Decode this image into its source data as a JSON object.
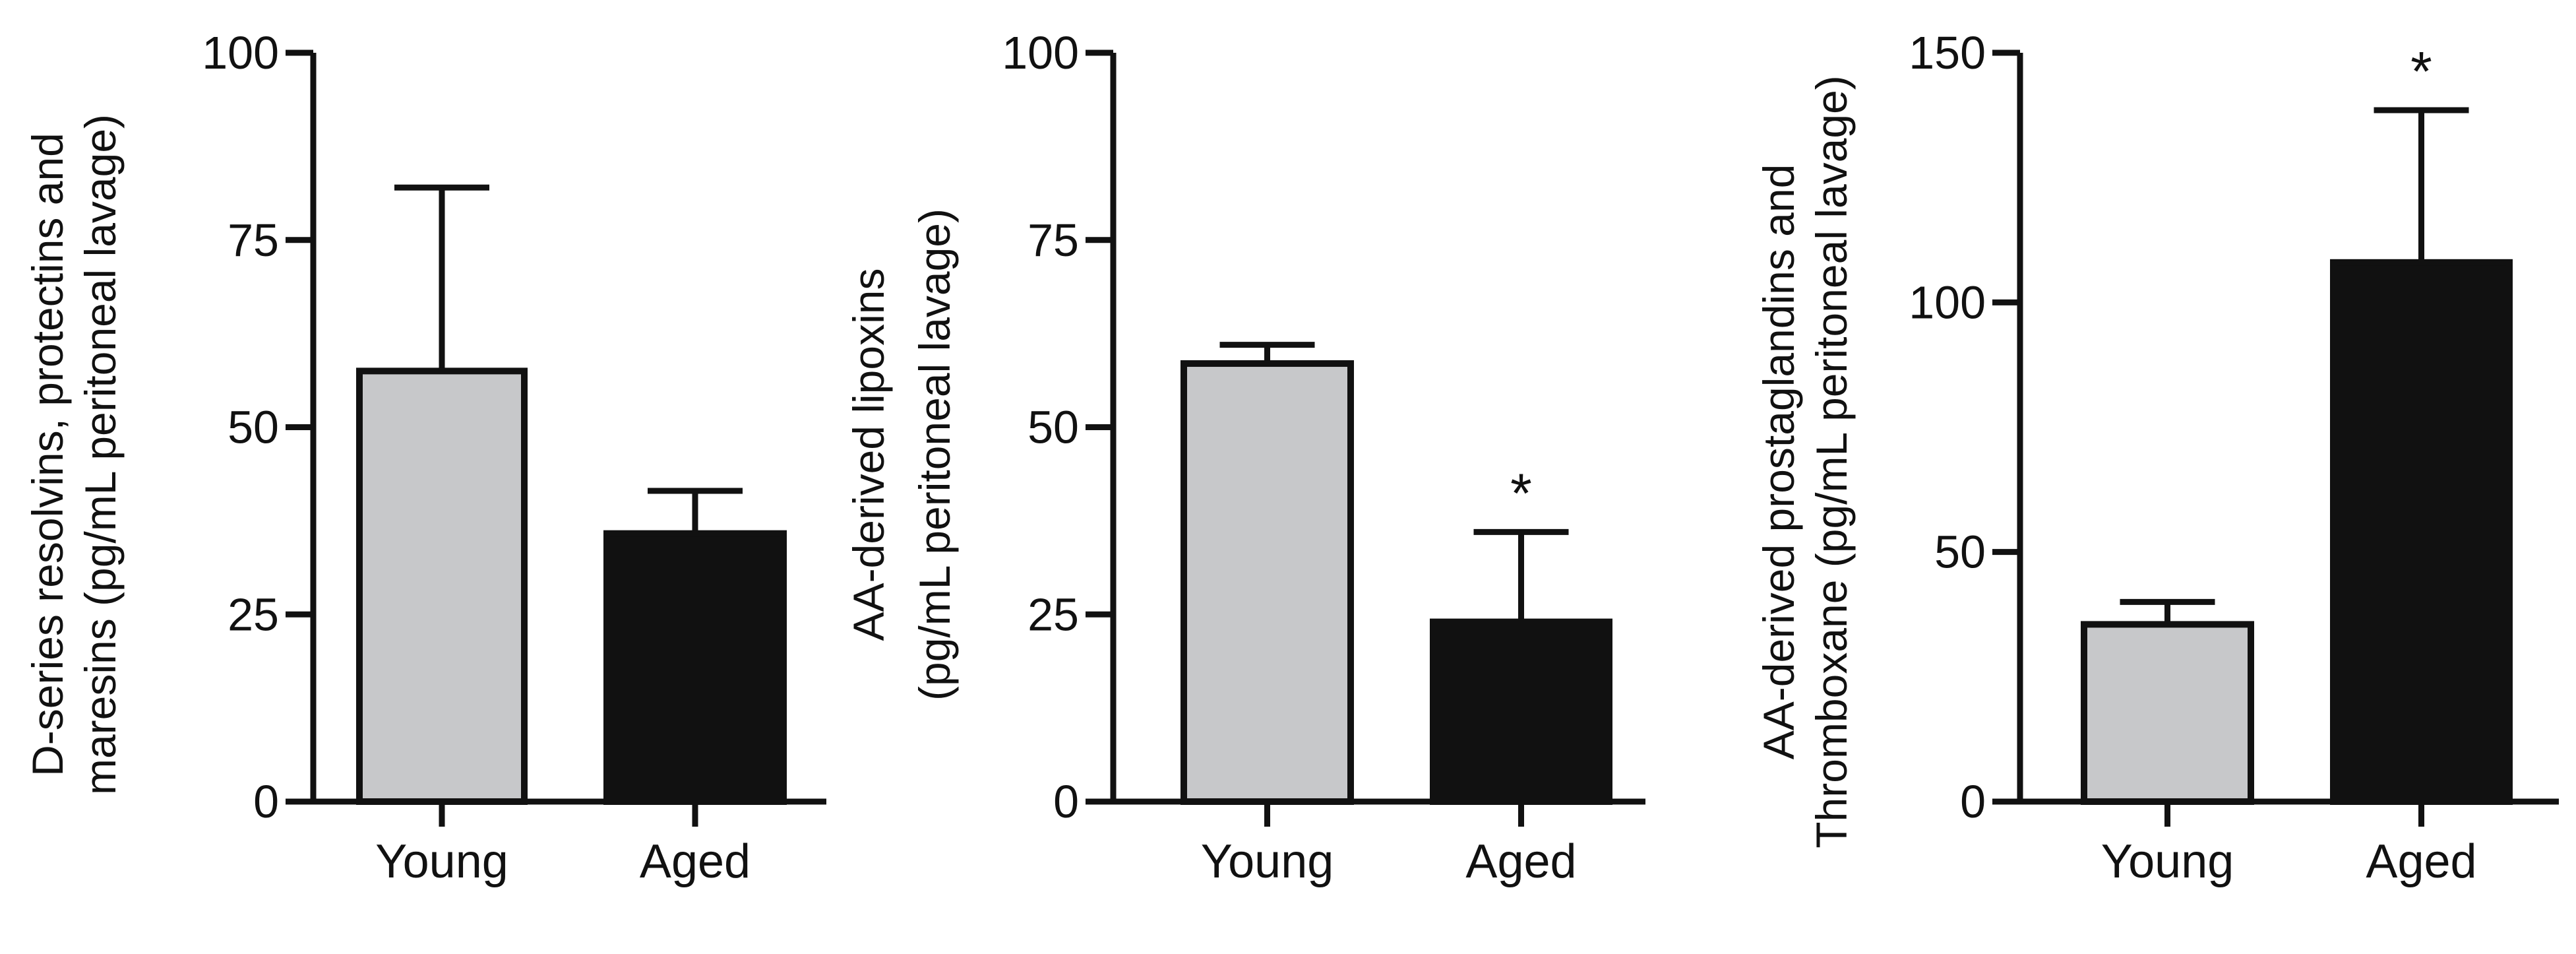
{
  "colors": {
    "young": "#c7c8ca",
    "aged": "#111111",
    "axis": "#111111",
    "background": "#ffffff"
  },
  "chart_data": [
    {
      "type": "bar",
      "categories": [
        "Young",
        "Aged"
      ],
      "values": [
        57.5,
        35.8
      ],
      "error_upper": [
        82.0,
        41.5
      ],
      "significance": [
        "",
        ""
      ],
      "ylabel_lines": [
        "D-series resolvins, protectins and",
        "maresins (pg/mL peritoneal lavage)"
      ],
      "ylim": [
        0,
        100
      ],
      "yticks": [
        0,
        25,
        50,
        75,
        100
      ],
      "grid": false,
      "legend": "none"
    },
    {
      "type": "bar",
      "categories": [
        "Young",
        "Aged"
      ],
      "values": [
        58.5,
        24.0
      ],
      "error_upper": [
        61.0,
        36.0
      ],
      "significance": [
        "",
        "*"
      ],
      "ylabel_lines": [
        "AA-derived lipoxins",
        "(pg/mL peritoneal lavage)"
      ],
      "ylim": [
        0,
        100
      ],
      "yticks": [
        0,
        25,
        50,
        75,
        100
      ],
      "grid": false,
      "legend": "none"
    },
    {
      "type": "bar",
      "categories": [
        "Young",
        "Aged"
      ],
      "values": [
        35.5,
        108.0
      ],
      "error_upper": [
        40.0,
        138.5
      ],
      "significance": [
        "",
        "*"
      ],
      "ylabel_lines": [
        "AA-derived prostaglandins and",
        "Thromboxane (pg/mL peritoneal lavage)"
      ],
      "ylim": [
        0,
        150
      ],
      "yticks": [
        0,
        50,
        100,
        150
      ],
      "grid": false,
      "legend": "none"
    }
  ]
}
